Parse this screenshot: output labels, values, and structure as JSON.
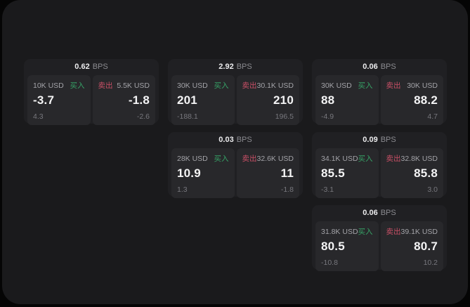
{
  "app": {
    "outer_background": "#050505",
    "panel_background": "#1a1a1c",
    "card_background": "#202023",
    "subpanel_background": "#28282b"
  },
  "colors": {
    "buy_green": "#36a266",
    "sell_red": "#c84f66",
    "price_white": "#f4f4f5",
    "muted_gray": "#8b8b90"
  },
  "labels": {
    "buy": "买入",
    "sell": "卖出",
    "bps_suffix": "BPS"
  },
  "cards": [
    {
      "col": 1,
      "row": 1,
      "bps": "0.62",
      "buy": {
        "size": "10K USD",
        "price": "-3.7",
        "delta": "4.3"
      },
      "sell": {
        "size": "5.5K USD",
        "price": "-1.8",
        "delta": "-2.6"
      }
    },
    {
      "col": 2,
      "row": 1,
      "bps": "2.92",
      "buy": {
        "size": "30K USD",
        "price": "201",
        "delta": "-188.1"
      },
      "sell": {
        "size": "30.1K USD",
        "price": "210",
        "delta": "196.5"
      }
    },
    {
      "col": 3,
      "row": 1,
      "bps": "0.06",
      "buy": {
        "size": "30K USD",
        "price": "88",
        "delta": "-4.9"
      },
      "sell": {
        "size": "30K USD",
        "price": "88.2",
        "delta": "4.7"
      }
    },
    {
      "col": 2,
      "row": 2,
      "bps": "0.03",
      "buy": {
        "size": "28K USD",
        "price": "10.9",
        "delta": "1.3"
      },
      "sell": {
        "size": "32.6K USD",
        "price": "11",
        "delta": "-1.8"
      }
    },
    {
      "col": 3,
      "row": 2,
      "bps": "0.09",
      "buy": {
        "size": "34.1K USD",
        "price": "85.5",
        "delta": "-3.1"
      },
      "sell": {
        "size": "32.8K USD",
        "price": "85.8",
        "delta": "3.0"
      }
    },
    {
      "col": 3,
      "row": 3,
      "bps": "0.06",
      "buy": {
        "size": "31.8K USD",
        "price": "80.5",
        "delta": "-10.8"
      },
      "sell": {
        "size": "39.1K USD",
        "price": "80.7",
        "delta": "10.2"
      }
    }
  ]
}
